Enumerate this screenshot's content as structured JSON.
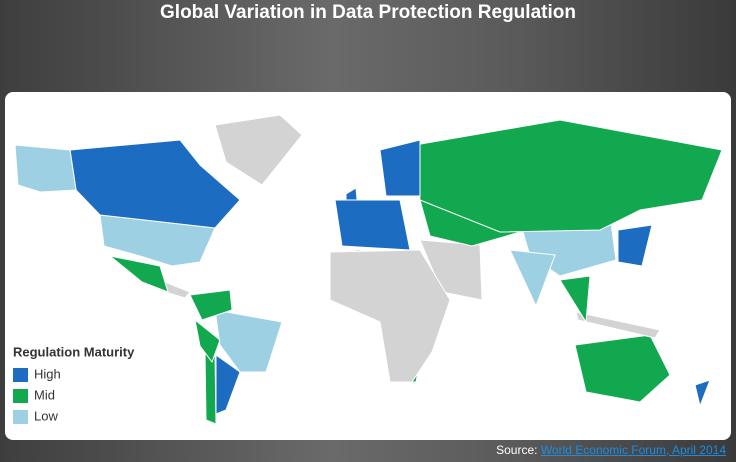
{
  "title": "Global Variation in Data Protection Regulation",
  "legend": {
    "title": "Regulation Maturity",
    "items": [
      {
        "label": "High",
        "color": "#1c6cc2"
      },
      {
        "label": "Mid",
        "color": "#12a84f"
      },
      {
        "label": "Low",
        "color": "#9dd0e3"
      }
    ]
  },
  "source": {
    "prefix": "Source:",
    "link": "World Economic Forum, April 2014"
  }
}
